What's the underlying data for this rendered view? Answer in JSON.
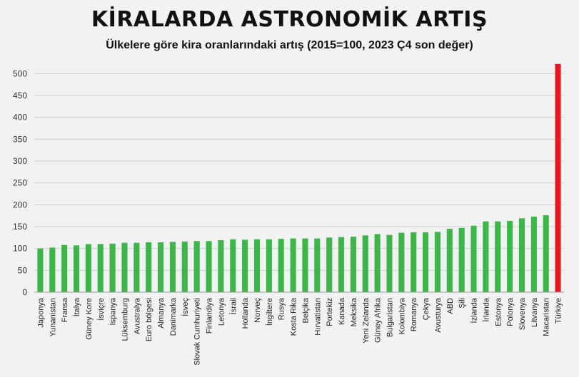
{
  "chart_data": {
    "type": "bar",
    "title": "KİRALARDA ASTRONOMİK ARTIŞ",
    "subtitle": "Ülkelere göre kira oranlarındaki artış (2015=100, 2023 Ç4 son değer)",
    "xlabel": "",
    "ylabel": "",
    "ylim": [
      0,
      525
    ],
    "yticks": [
      0,
      50,
      100,
      150,
      200,
      250,
      300,
      350,
      400,
      450,
      500
    ],
    "grid": true,
    "legend": "none",
    "colors": {
      "default": "#3cb54a",
      "highlight": "#e8191e"
    },
    "highlight_category": "Türkiye",
    "categories": [
      "Japonya",
      "Yunanistan",
      "Fransa",
      "İtalya",
      "Güney Kore",
      "İsviçre",
      "İspanya",
      "Lüksemburg",
      "Avustralya",
      "Euro bölgesi",
      "Almanya",
      "Danimarka",
      "İsveç",
      "Slovak Cumhuriyeti",
      "Finlandiya",
      "Letonya",
      "İsrail",
      "Hollanda",
      "Norveç",
      "İngiltere",
      "Rusya",
      "Kosta Rika",
      "Belçika",
      "Hırvatistan",
      "Portekiz",
      "Kanada",
      "Meksika",
      "Yeni Zelanda",
      "Güney Afrika",
      "Bulgaristan",
      "Kolombiya",
      "Romanya",
      "Çekya",
      "Avusturya",
      "ABD",
      "Şili",
      "İzlanda",
      "İrlanda",
      "Estonya",
      "Polonya",
      "Slovenya",
      "Litvanya",
      "Macaristan",
      "Türkiye"
    ],
    "values": [
      100,
      102,
      108,
      107,
      110,
      110,
      111,
      113,
      113,
      114,
      114,
      115,
      116,
      117,
      117,
      119,
      121,
      120,
      121,
      121,
      122,
      123,
      123,
      123,
      125,
      126,
      127,
      130,
      133,
      131,
      136,
      137,
      137,
      138,
      145,
      147,
      152,
      162,
      162,
      163,
      169,
      173,
      176,
      522
    ]
  }
}
